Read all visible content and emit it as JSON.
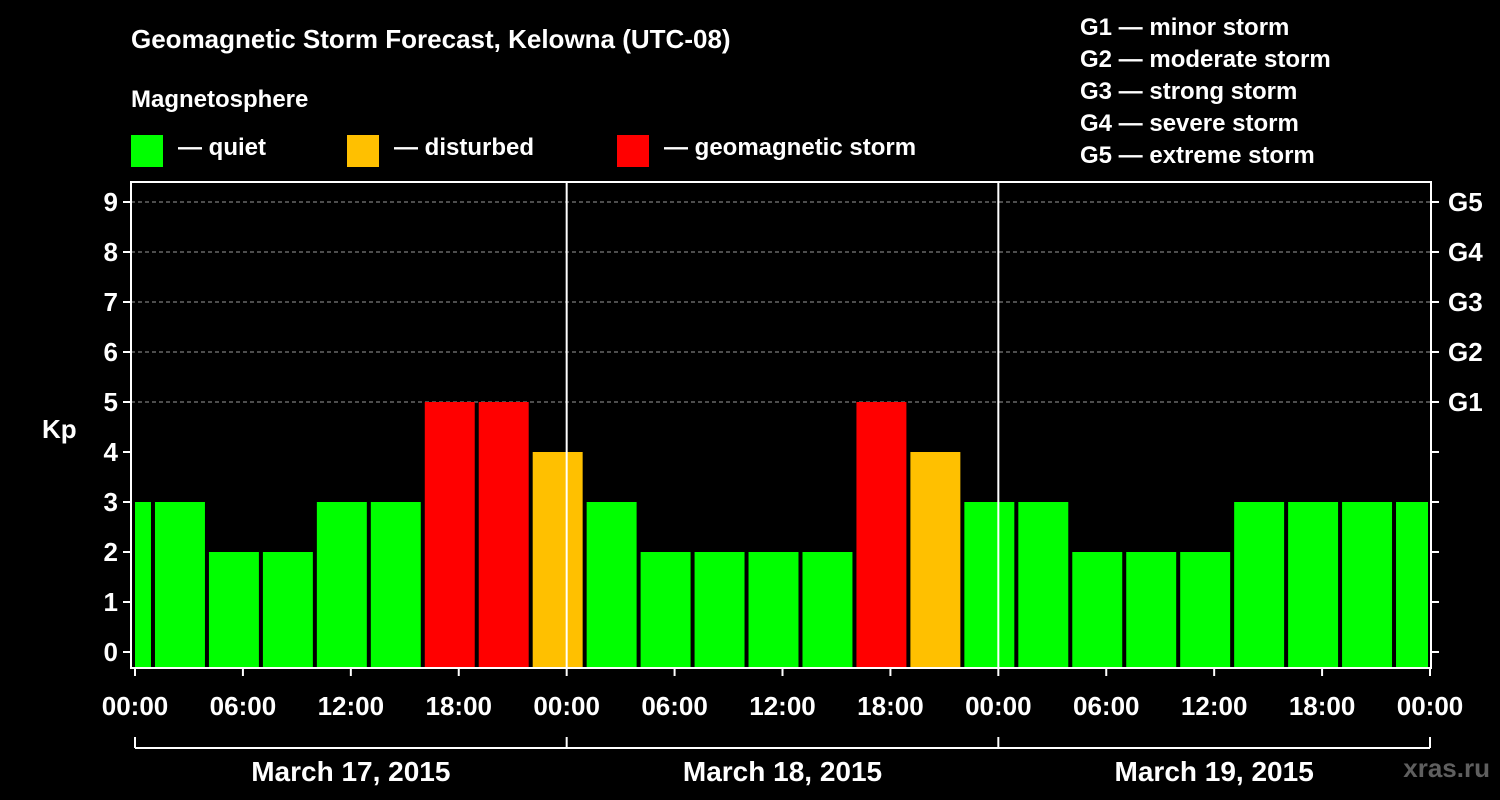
{
  "header": {
    "title": "Geomagnetic Storm Forecast, Kelowna (UTC-08)",
    "subtitle": "Magnetosphere",
    "legend": [
      {
        "label": "— quiet",
        "color": "#00ff00"
      },
      {
        "label": "— disturbed",
        "color": "#ffc000"
      },
      {
        "label": "— geomagnetic storm",
        "color": "#ff0000"
      }
    ],
    "storm_scale": [
      "G1 — minor storm",
      "G2 — moderate storm",
      "G3 — strong storm",
      "G4 — severe storm",
      "G5 — extreme storm"
    ]
  },
  "watermark": "xras.ru",
  "chart_data": {
    "type": "bar",
    "title": "Geomagnetic Storm Forecast, Kelowna (UTC-08)",
    "ylabel": "Kp",
    "ylim": [
      0,
      9
    ],
    "grid": true,
    "y_ticks": [
      "0",
      "1",
      "2",
      "3",
      "4",
      "5",
      "6",
      "7",
      "8",
      "9"
    ],
    "right_ticks": [
      {
        "kp": 5,
        "label": "G1"
      },
      {
        "kp": 6,
        "label": "G2"
      },
      {
        "kp": 7,
        "label": "G3"
      },
      {
        "kp": 8,
        "label": "G4"
      },
      {
        "kp": 9,
        "label": "G5"
      }
    ],
    "x_ticks": [
      "00:00",
      "06:00",
      "12:00",
      "18:00",
      "00:00",
      "06:00",
      "12:00",
      "18:00",
      "00:00",
      "06:00",
      "12:00",
      "18:00",
      "00:00"
    ],
    "dates": [
      "March 17, 2015",
      "March 18, 2015",
      "March 19, 2015"
    ],
    "colors": {
      "quiet": "#00ff00",
      "disturbed": "#ffc000",
      "storm": "#ff0000"
    },
    "bars": [
      {
        "start_hour": 0,
        "end_hour": 1,
        "kp": 3
      },
      {
        "start_hour": 1,
        "end_hour": 4,
        "kp": 3
      },
      {
        "start_hour": 4,
        "end_hour": 7,
        "kp": 2
      },
      {
        "start_hour": 7,
        "end_hour": 10,
        "kp": 2
      },
      {
        "start_hour": 10,
        "end_hour": 13,
        "kp": 3
      },
      {
        "start_hour": 13,
        "end_hour": 16,
        "kp": 3
      },
      {
        "start_hour": 16,
        "end_hour": 19,
        "kp": 5
      },
      {
        "start_hour": 19,
        "end_hour": 22,
        "kp": 5
      },
      {
        "start_hour": 22,
        "end_hour": 25,
        "kp": 4
      },
      {
        "start_hour": 25,
        "end_hour": 28,
        "kp": 3
      },
      {
        "start_hour": 28,
        "end_hour": 31,
        "kp": 2
      },
      {
        "start_hour": 31,
        "end_hour": 34,
        "kp": 2
      },
      {
        "start_hour": 34,
        "end_hour": 37,
        "kp": 2
      },
      {
        "start_hour": 37,
        "end_hour": 40,
        "kp": 2
      },
      {
        "start_hour": 40,
        "end_hour": 43,
        "kp": 5
      },
      {
        "start_hour": 43,
        "end_hour": 46,
        "kp": 4
      },
      {
        "start_hour": 46,
        "end_hour": 49,
        "kp": 3
      },
      {
        "start_hour": 49,
        "end_hour": 52,
        "kp": 3
      },
      {
        "start_hour": 52,
        "end_hour": 55,
        "kp": 2
      },
      {
        "start_hour": 55,
        "end_hour": 58,
        "kp": 2
      },
      {
        "start_hour": 58,
        "end_hour": 61,
        "kp": 2
      },
      {
        "start_hour": 61,
        "end_hour": 64,
        "kp": 3
      },
      {
        "start_hour": 64,
        "end_hour": 67,
        "kp": 3
      },
      {
        "start_hour": 67,
        "end_hour": 70,
        "kp": 3
      },
      {
        "start_hour": 70,
        "end_hour": 72,
        "kp": 3
      }
    ]
  }
}
